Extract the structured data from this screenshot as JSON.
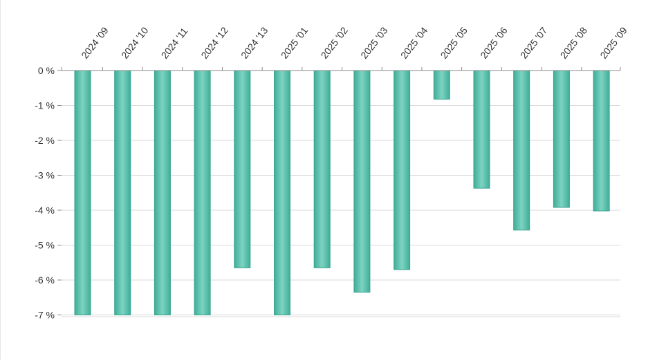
{
  "chart_data": {
    "type": "bar",
    "categories": [
      "2024 '09",
      "2024 '10",
      "2024 '11",
      "2024 '12",
      "2024 '13",
      "2025 '01",
      "2025 '02",
      "2025 '03",
      "2025 '04",
      "2025 '05",
      "2025 '06",
      "2025 '07",
      "2025 '08",
      "2025 '09"
    ],
    "values": [
      -7.0,
      -7.0,
      -7.0,
      -7.0,
      -5.65,
      -7.0,
      -5.65,
      -6.35,
      -5.7,
      -0.82,
      -3.37,
      -4.57,
      -3.92,
      -4.02
    ],
    "ylim": [
      -7,
      0
    ],
    "yticks": [
      0,
      -1,
      -2,
      -3,
      -4,
      -5,
      -6,
      -7
    ],
    "ytick_labels": [
      "0 %",
      "-1 %",
      "-2 %",
      "-3 %",
      "-4 %",
      "-5 %",
      "-6 %",
      "-7 %"
    ],
    "grid": true,
    "title": "",
    "xlabel": "",
    "ylabel": "",
    "bar_color": "#5cc0ac",
    "bar_edge_color": "#3aa38f"
  }
}
